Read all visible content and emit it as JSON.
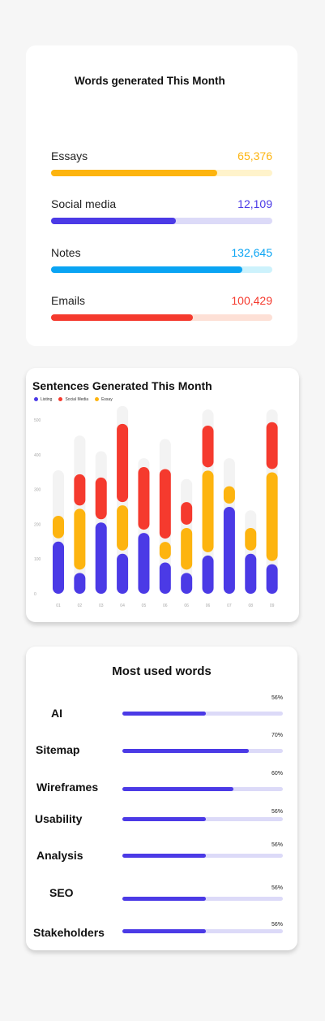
{
  "words_card": {
    "title": "Words generated This Month",
    "items": [
      {
        "label": "Essays",
        "value": "65,376",
        "fraction": 0.75,
        "color": "#fdb40f",
        "track": "#fff3cb"
      },
      {
        "label": "Social media",
        "value": "12,109",
        "fraction": 0.565,
        "color": "#4b3ae6",
        "track": "#dcdaf8"
      },
      {
        "label": "Notes",
        "value": "132,645",
        "fraction": 0.865,
        "color": "#0aa4f3",
        "track": "#cdf2fc"
      },
      {
        "label": "Emails",
        "value": "100,429",
        "fraction": 0.64,
        "color": "#f53a2e",
        "track": "#fde0d6"
      }
    ]
  },
  "chart_data": {
    "type": "bar",
    "title": "Sentences Generated This Month",
    "stacked": true,
    "ylim": [
      0,
      500
    ],
    "yticks": [
      "500",
      "400",
      "300",
      "200",
      "100",
      "0"
    ],
    "categories": [
      "01",
      "02",
      "03",
      "04",
      "05",
      "06",
      "06",
      "06",
      "07",
      "08",
      "09"
    ],
    "series": [
      {
        "name": "Listing",
        "color": "#4b3ae6",
        "values": [
          150,
          60,
          205,
          115,
          175,
          90,
          60,
          110,
          250,
          115,
          85
        ]
      },
      {
        "name": "Social Media",
        "color": "#f53a2e",
        "values": [
          0,
          90,
          120,
          225,
          180,
          200,
          65,
          120,
          0,
          0,
          135
        ]
      },
      {
        "name": "Essay",
        "color": "#fdb40f",
        "values": [
          65,
          175,
          0,
          130,
          0,
          50,
          120,
          235,
          50,
          65,
          255
        ]
      }
    ],
    "background_totals": [
      355,
      455,
      410,
      540,
      390,
      445,
      330,
      530,
      390,
      240,
      530
    ],
    "legend": "top-left"
  },
  "most_used": {
    "title": "Most used words",
    "items": [
      {
        "label": "AI",
        "percent": "56%",
        "fraction": 0.52
      },
      {
        "label": "Sitemap",
        "percent": "70%",
        "fraction": 0.79
      },
      {
        "label": "Wireframes",
        "percent": "60%",
        "fraction": 0.69
      },
      {
        "label": "Usability",
        "percent": "56%",
        "fraction": 0.52
      },
      {
        "label": "Analysis",
        "percent": "56%",
        "fraction": 0.52
      },
      {
        "label": "SEO",
        "percent": "56%",
        "fraction": 0.52
      },
      {
        "label": "Stakeholders",
        "percent": "56%",
        "fraction": 0.52
      }
    ]
  }
}
